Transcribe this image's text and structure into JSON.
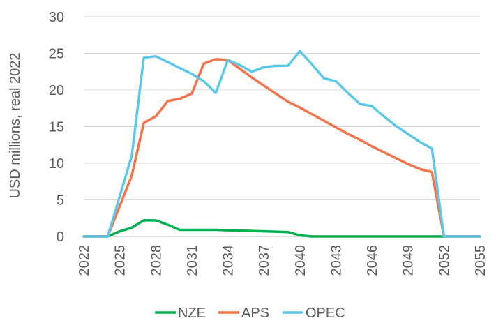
{
  "chart_data": {
    "type": "line",
    "title": "",
    "xlabel": "",
    "ylabel": "USD millions, real 2022",
    "xlim": [
      2022,
      2055
    ],
    "ylim": [
      0,
      30
    ],
    "y_ticks": [
      0,
      5,
      10,
      15,
      20,
      25,
      30
    ],
    "x_ticks": [
      2022,
      2025,
      2028,
      2031,
      2034,
      2037,
      2040,
      2043,
      2046,
      2049,
      2052,
      2055
    ],
    "x_tick_labels": [
      "2022",
      "2025",
      "2028",
      "2031",
      "2034",
      "2037",
      "2040",
      "2043",
      "2046",
      "2049",
      "2052",
      "2055"
    ],
    "y_tick_labels": [
      "0",
      "5",
      "10",
      "15",
      "20",
      "25",
      "30"
    ],
    "grid": "horizontal",
    "legend_position": "bottom",
    "series": [
      {
        "name": "NZE",
        "color": "#00b050",
        "points": [
          [
            2022,
            0
          ],
          [
            2023,
            0
          ],
          [
            2024,
            0
          ],
          [
            2025,
            0.7
          ],
          [
            2026,
            1.2
          ],
          [
            2027,
            2.2
          ],
          [
            2028,
            2.2
          ],
          [
            2029,
            1.6
          ],
          [
            2030,
            0.9
          ],
          [
            2031,
            0.9
          ],
          [
            2032,
            0.9
          ],
          [
            2033,
            0.9
          ],
          [
            2034,
            0.85
          ],
          [
            2035,
            0.8
          ],
          [
            2036,
            0.75
          ],
          [
            2037,
            0.7
          ],
          [
            2038,
            0.65
          ],
          [
            2039,
            0.6
          ],
          [
            2040,
            0.15
          ],
          [
            2041,
            0
          ],
          [
            2042,
            0
          ],
          [
            2043,
            0
          ],
          [
            2044,
            0
          ],
          [
            2045,
            0
          ],
          [
            2046,
            0
          ],
          [
            2047,
            0
          ],
          [
            2048,
            0
          ],
          [
            2049,
            0
          ],
          [
            2050,
            0
          ],
          [
            2051,
            0
          ],
          [
            2052,
            0
          ],
          [
            2053,
            0
          ],
          [
            2054,
            0
          ],
          [
            2055,
            0
          ]
        ]
      },
      {
        "name": "APS",
        "color": "#f4734a",
        "points": [
          [
            2022,
            0
          ],
          [
            2023,
            0
          ],
          [
            2024,
            0
          ],
          [
            2026,
            8.3
          ],
          [
            2027,
            15.5
          ],
          [
            2028,
            16.4
          ],
          [
            2029,
            18.5
          ],
          [
            2030,
            18.8
          ],
          [
            2031,
            19.5
          ],
          [
            2032,
            23.6
          ],
          [
            2033,
            24.2
          ],
          [
            2034,
            24.1
          ],
          [
            2035,
            22.9
          ],
          [
            2036,
            21.7
          ],
          [
            2037,
            20.6
          ],
          [
            2038,
            19.5
          ],
          [
            2039,
            18.4
          ],
          [
            2040,
            17.6
          ],
          [
            2041,
            16.7
          ],
          [
            2042,
            15.8
          ],
          [
            2043,
            14.9
          ],
          [
            2044,
            14.0
          ],
          [
            2045,
            13.2
          ],
          [
            2046,
            12.3
          ],
          [
            2047,
            11.5
          ],
          [
            2048,
            10.7
          ],
          [
            2049,
            9.9
          ],
          [
            2050,
            9.2
          ],
          [
            2051,
            8.8
          ],
          [
            2052,
            0
          ],
          [
            2053,
            0
          ],
          [
            2054,
            0
          ],
          [
            2055,
            0
          ]
        ]
      },
      {
        "name": "OPEC",
        "color": "#5bc8ea",
        "points": [
          [
            2022,
            0
          ],
          [
            2023,
            0
          ],
          [
            2024,
            0
          ],
          [
            2026,
            11.0
          ],
          [
            2027,
            24.4
          ],
          [
            2028,
            24.6
          ],
          [
            2029,
            23.8
          ],
          [
            2030,
            23.0
          ],
          [
            2031,
            22.2
          ],
          [
            2032,
            21.2
          ],
          [
            2033,
            19.6
          ],
          [
            2034,
            24.1
          ],
          [
            2035,
            23.4
          ],
          [
            2036,
            22.5
          ],
          [
            2037,
            23.1
          ],
          [
            2038,
            23.3
          ],
          [
            2039,
            23.3
          ],
          [
            2040,
            25.3
          ],
          [
            2041,
            23.5
          ],
          [
            2042,
            21.6
          ],
          [
            2043,
            21.2
          ],
          [
            2044,
            19.6
          ],
          [
            2045,
            18.1
          ],
          [
            2046,
            17.8
          ],
          [
            2047,
            16.4
          ],
          [
            2048,
            15.1
          ],
          [
            2049,
            14.0
          ],
          [
            2050,
            12.9
          ],
          [
            2051,
            12.0
          ],
          [
            2052,
            0
          ],
          [
            2053,
            0
          ],
          [
            2054,
            0
          ],
          [
            2055,
            0
          ]
        ]
      }
    ]
  }
}
